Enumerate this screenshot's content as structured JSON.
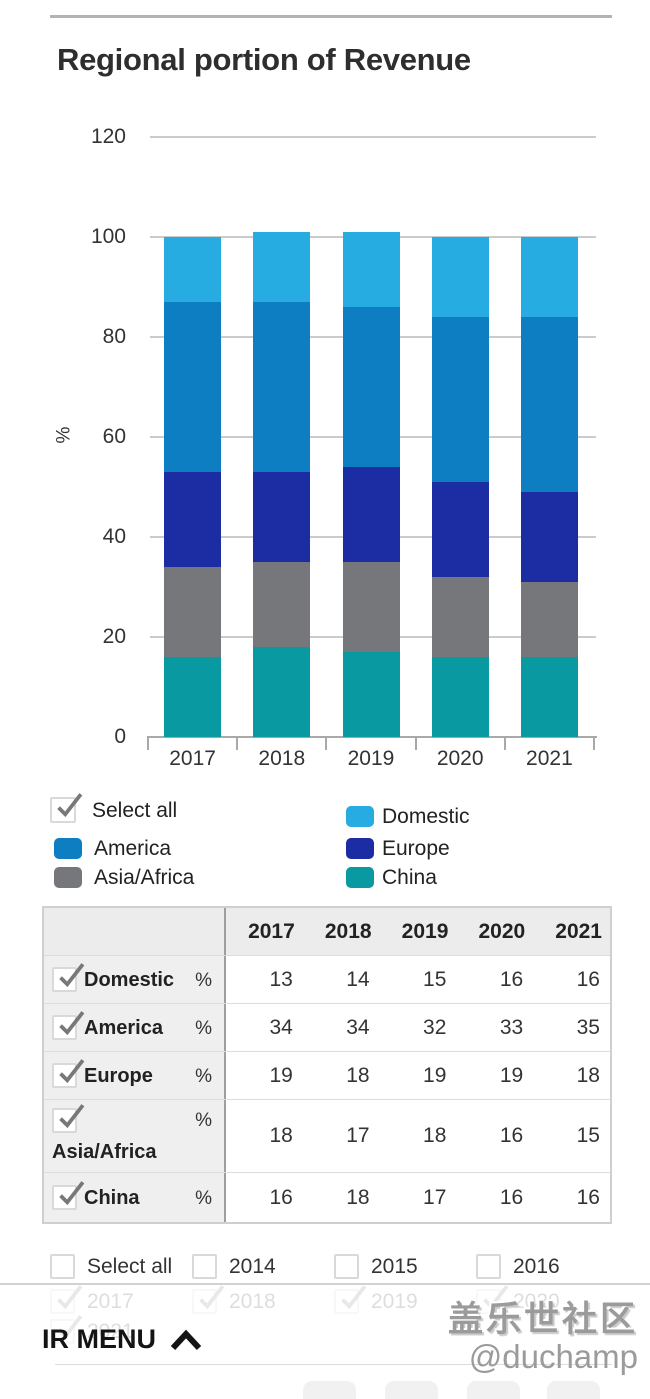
{
  "page": {
    "title": "Regional portion of Revenue"
  },
  "chart_data": {
    "type": "bar",
    "stacked": true,
    "title": "Regional portion of Revenue",
    "categories": [
      "2017",
      "2018",
      "2019",
      "2020",
      "2021"
    ],
    "series": [
      {
        "name": "Domestic",
        "color": "#27ACE2",
        "values": [
          13,
          14,
          15,
          16,
          16
        ]
      },
      {
        "name": "America",
        "color": "#0C7EC1",
        "values": [
          34,
          34,
          32,
          33,
          35
        ]
      },
      {
        "name": "Europe",
        "color": "#1C2CA2",
        "values": [
          19,
          18,
          19,
          19,
          18
        ]
      },
      {
        "name": "Asia/Africa",
        "color": "#76777B",
        "values": [
          18,
          17,
          18,
          16,
          15
        ]
      },
      {
        "name": "China",
        "color": "#0899A1",
        "values": [
          16,
          18,
          17,
          16,
          16
        ]
      }
    ],
    "stack_order_bottom_to_top": [
      "China",
      "Asia/Africa",
      "Europe",
      "America",
      "Domestic"
    ],
    "xlabel": "",
    "ylabel": "%",
    "ylim": [
      0,
      120
    ],
    "yticks": [
      0,
      20,
      40,
      60,
      80,
      100,
      120
    ],
    "grid": true,
    "legend_position": "below-chart"
  },
  "legend": {
    "rows": [
      [
        {
          "type": "checkbox",
          "label": "Select all",
          "checked": true
        },
        {
          "type": "swatch",
          "label": "Domestic"
        }
      ],
      [
        {
          "type": "swatch",
          "label": "America"
        },
        {
          "type": "swatch",
          "label": "Europe"
        }
      ],
      [
        {
          "type": "swatch",
          "label": "Asia/Africa"
        },
        {
          "type": "swatch",
          "label": "China"
        }
      ]
    ]
  },
  "table": {
    "columns": [
      "2017",
      "2018",
      "2019",
      "2020",
      "2021"
    ],
    "unit_label": "%",
    "rows": [
      {
        "label": "Domestic",
        "checked": true,
        "wrap": false,
        "values": [
          13,
          14,
          15,
          16,
          16
        ]
      },
      {
        "label": "America",
        "checked": true,
        "wrap": false,
        "values": [
          34,
          34,
          32,
          33,
          35
        ]
      },
      {
        "label": "Europe",
        "checked": true,
        "wrap": false,
        "values": [
          19,
          18,
          19,
          19,
          18
        ]
      },
      {
        "label": "Asia/Africa",
        "checked": true,
        "wrap": true,
        "values": [
          18,
          17,
          18,
          16,
          15
        ]
      },
      {
        "label": "China",
        "checked": true,
        "wrap": false,
        "values": [
          16,
          18,
          17,
          16,
          16
        ]
      }
    ]
  },
  "filters": {
    "row": [
      {
        "label": "Select all",
        "checked": false
      },
      {
        "label": "2014",
        "checked": false
      },
      {
        "label": "2015",
        "checked": false
      },
      {
        "label": "2016",
        "checked": false
      }
    ],
    "faded_rows": [
      [
        {
          "label": "2017",
          "checked": true
        },
        {
          "label": "2018",
          "checked": true
        },
        {
          "label": "2019",
          "checked": true
        },
        {
          "label": "2020",
          "checked": true
        }
      ],
      [
        {
          "label": "2021",
          "checked": true
        }
      ]
    ]
  },
  "footer": {
    "menu_label": "IR MENU"
  },
  "watermark": {
    "line1": "盖乐世社区",
    "line2": "@duchamp"
  }
}
